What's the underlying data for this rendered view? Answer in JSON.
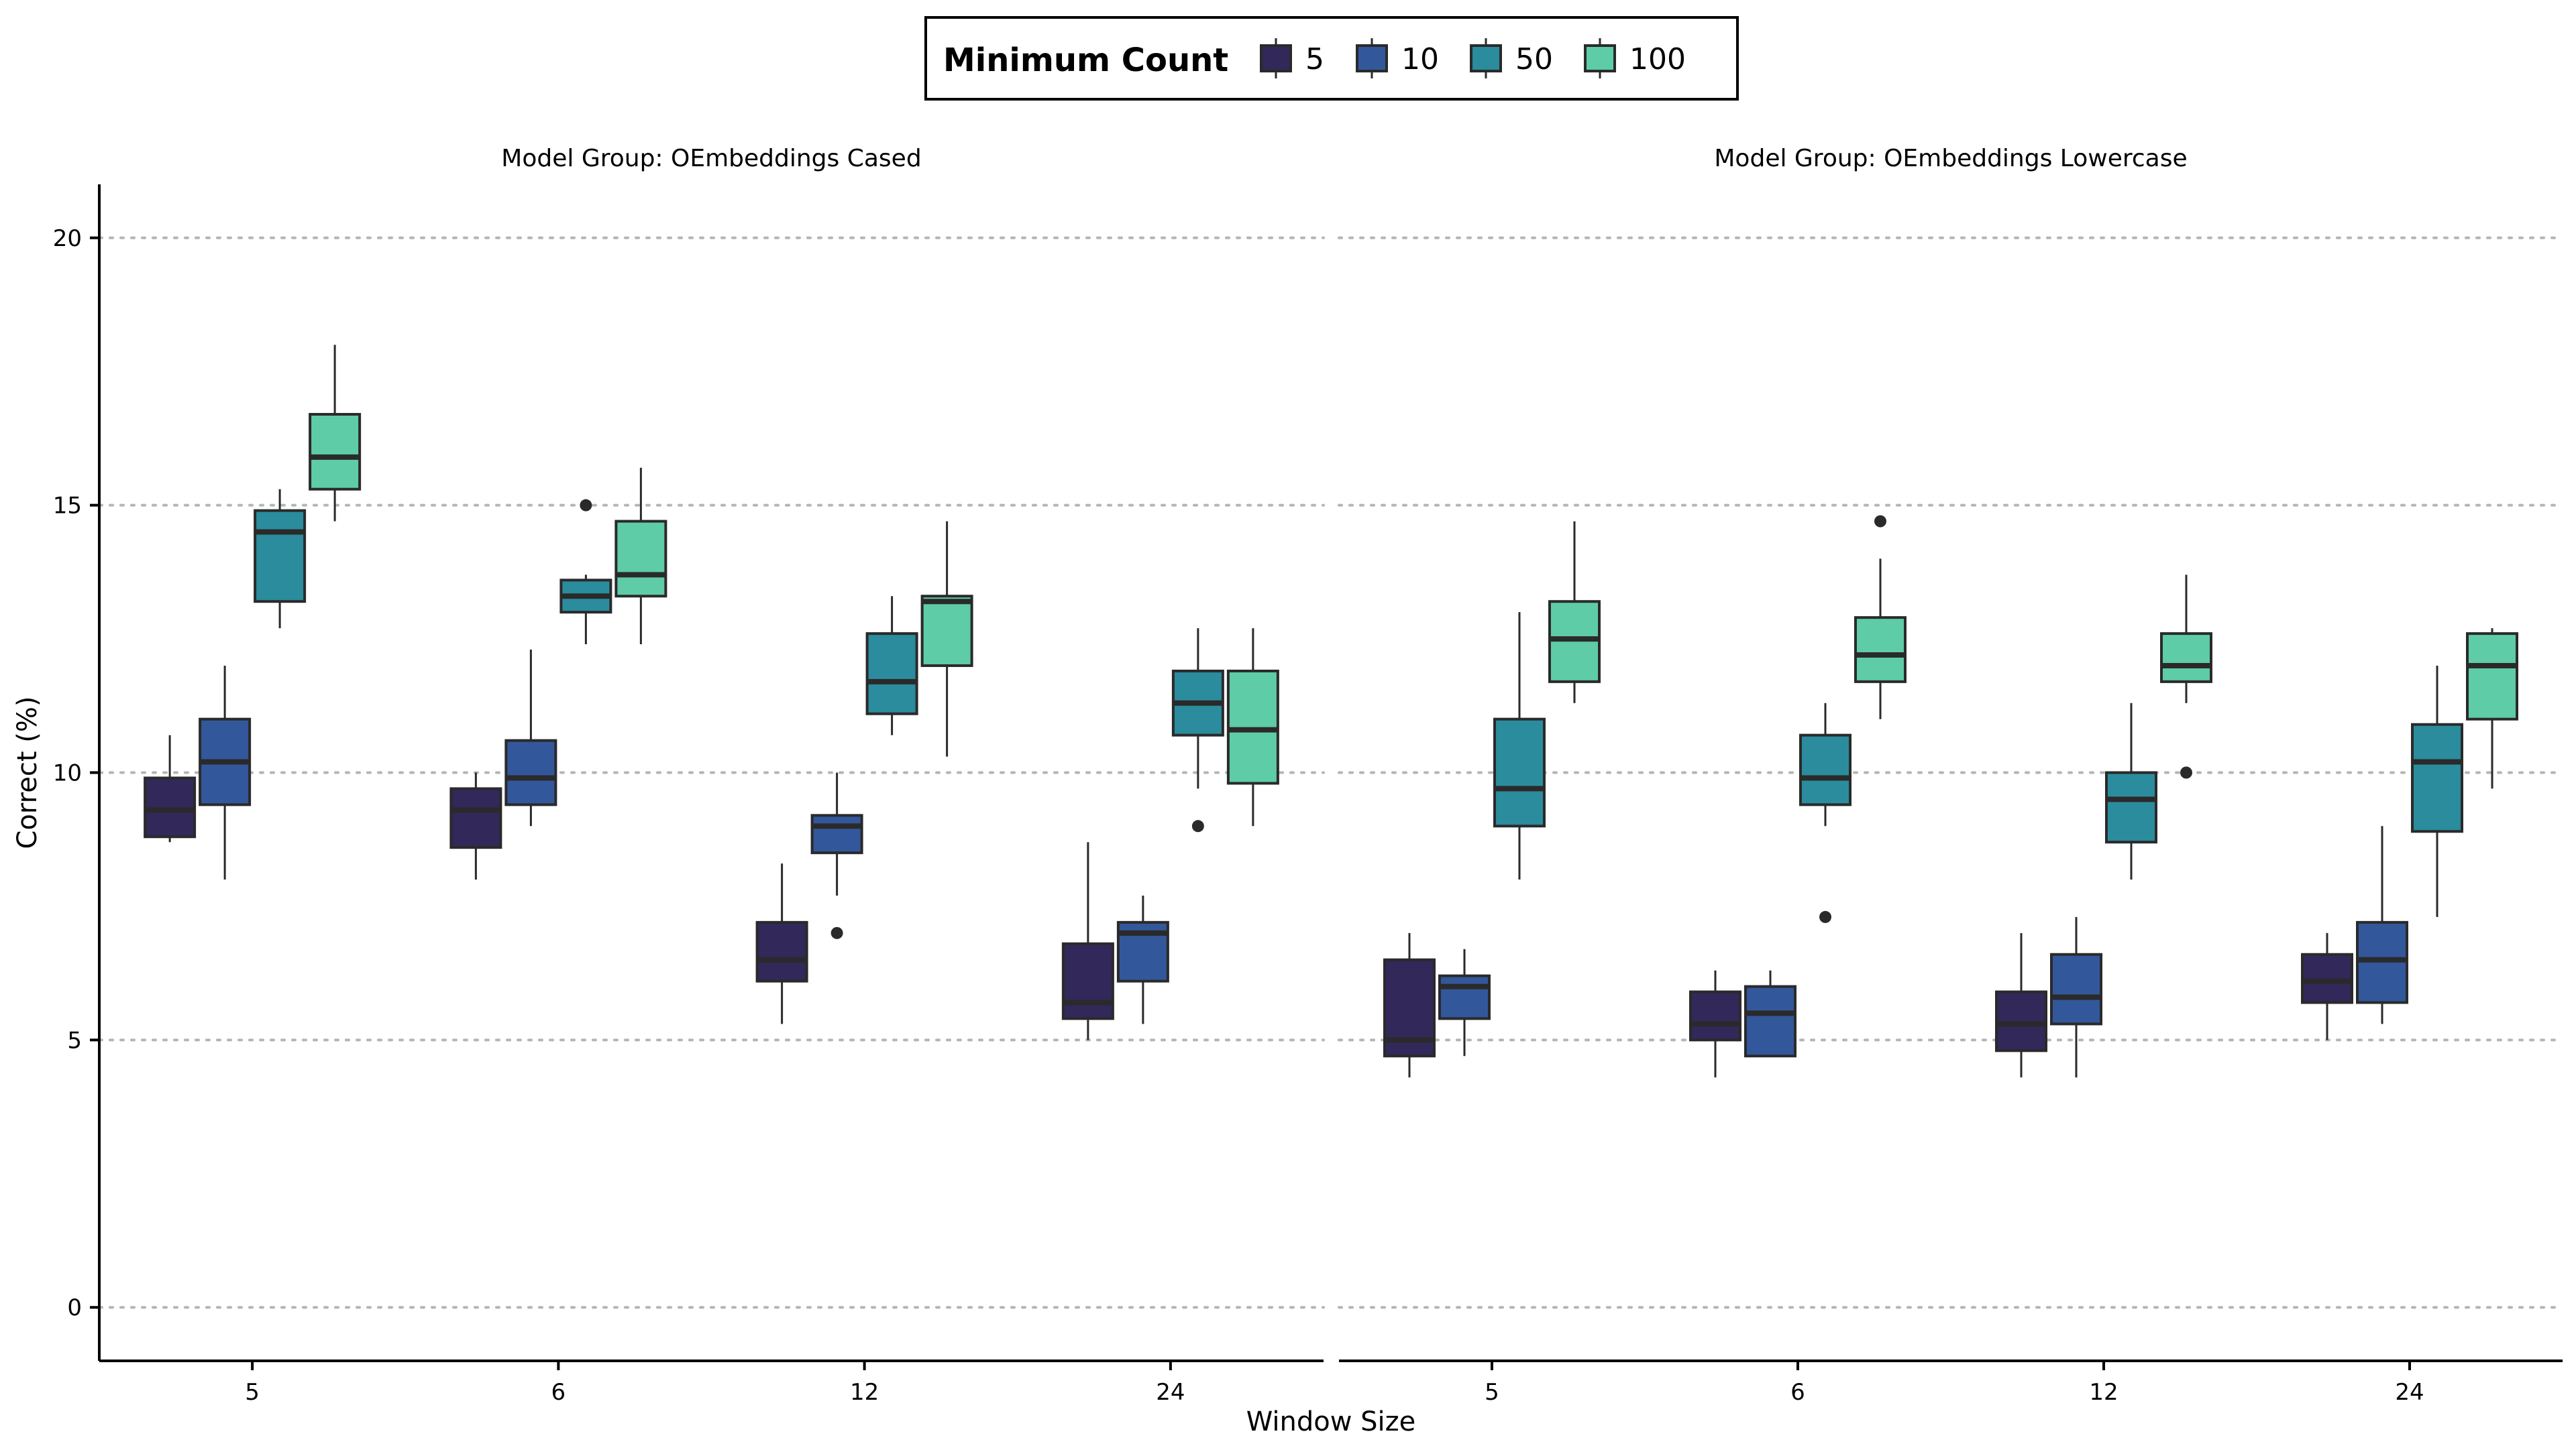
{
  "chart_data": {
    "type": "box",
    "ylabel": "Correct (%)",
    "xlabel": "Window Size",
    "ylim": [
      -1,
      21
    ],
    "yticks": [
      0,
      5,
      10,
      15,
      20
    ],
    "grid": "horizontal-dotted",
    "legend": {
      "title": "Minimum Count",
      "position": "top-center",
      "entries": [
        "5",
        "10",
        "50",
        "100"
      ]
    },
    "colors": {
      "5": "#33285a",
      "10": "#33579b",
      "50": "#2a8c9c",
      "100": "#5ecca6"
    },
    "categories": [
      "5",
      "6",
      "12",
      "24"
    ],
    "facets": [
      {
        "title": "Model Group: OEmbeddings Cased",
        "groups": [
          {
            "window": "5",
            "boxes": [
              {
                "series": "5",
                "min": 8.7,
                "q1": 8.8,
                "median": 9.3,
                "q3": 9.9,
                "max": 10.7,
                "outliers": []
              },
              {
                "series": "10",
                "min": 8.0,
                "q1": 9.4,
                "median": 10.2,
                "q3": 11.0,
                "max": 12.0,
                "outliers": []
              },
              {
                "series": "50",
                "min": 12.7,
                "q1": 13.2,
                "median": 14.5,
                "q3": 14.9,
                "max": 15.3,
                "outliers": []
              },
              {
                "series": "100",
                "min": 14.7,
                "q1": 15.3,
                "median": 15.9,
                "q3": 16.7,
                "max": 18.0,
                "outliers": []
              }
            ]
          },
          {
            "window": "6",
            "boxes": [
              {
                "series": "5",
                "min": 8.0,
                "q1": 8.6,
                "median": 9.3,
                "q3": 9.7,
                "max": 10.0,
                "outliers": []
              },
              {
                "series": "10",
                "min": 9.0,
                "q1": 9.4,
                "median": 9.9,
                "q3": 10.6,
                "max": 12.3,
                "outliers": []
              },
              {
                "series": "50",
                "min": 12.4,
                "q1": 13.0,
                "median": 13.3,
                "q3": 13.6,
                "max": 13.7,
                "outliers": [
                  15.0
                ]
              },
              {
                "series": "100",
                "min": 12.4,
                "q1": 13.3,
                "median": 13.7,
                "q3": 14.7,
                "max": 15.7,
                "outliers": []
              }
            ]
          },
          {
            "window": "12",
            "boxes": [
              {
                "series": "5",
                "min": 5.3,
                "q1": 6.1,
                "median": 6.5,
                "q3": 7.2,
                "max": 8.3,
                "outliers": []
              },
              {
                "series": "10",
                "min": 7.7,
                "q1": 8.5,
                "median": 9.0,
                "q3": 9.2,
                "max": 10.0,
                "outliers": [
                  7.0
                ]
              },
              {
                "series": "50",
                "min": 10.7,
                "q1": 11.1,
                "median": 11.7,
                "q3": 12.6,
                "max": 13.3,
                "outliers": []
              },
              {
                "series": "100",
                "min": 10.3,
                "q1": 12.0,
                "median": 13.2,
                "q3": 13.3,
                "max": 14.7,
                "outliers": []
              }
            ]
          },
          {
            "window": "24",
            "boxes": [
              {
                "series": "5",
                "min": 5.0,
                "q1": 5.4,
                "median": 5.7,
                "q3": 6.8,
                "max": 8.7,
                "outliers": []
              },
              {
                "series": "10",
                "min": 5.3,
                "q1": 6.1,
                "median": 7.0,
                "q3": 7.2,
                "max": 7.7,
                "outliers": []
              },
              {
                "series": "50",
                "min": 9.7,
                "q1": 10.7,
                "median": 11.3,
                "q3": 11.9,
                "max": 12.7,
                "outliers": [
                  9.0
                ]
              },
              {
                "series": "100",
                "min": 9.0,
                "q1": 9.8,
                "median": 10.8,
                "q3": 11.9,
                "max": 12.7,
                "outliers": []
              }
            ]
          }
        ]
      },
      {
        "title": "Model Group: OEmbeddings Lowercase",
        "groups": [
          {
            "window": "5",
            "boxes": [
              {
                "series": "5",
                "min": 4.3,
                "q1": 4.7,
                "median": 5.0,
                "q3": 6.5,
                "max": 7.0,
                "outliers": []
              },
              {
                "series": "10",
                "min": 4.7,
                "q1": 5.4,
                "median": 6.0,
                "q3": 6.2,
                "max": 6.7,
                "outliers": []
              },
              {
                "series": "50",
                "min": 8.0,
                "q1": 9.0,
                "median": 9.7,
                "q3": 11.0,
                "max": 13.0,
                "outliers": []
              },
              {
                "series": "100",
                "min": 11.3,
                "q1": 11.7,
                "median": 12.5,
                "q3": 13.2,
                "max": 14.7,
                "outliers": []
              }
            ]
          },
          {
            "window": "6",
            "boxes": [
              {
                "series": "5",
                "min": 4.3,
                "q1": 5.0,
                "median": 5.3,
                "q3": 5.9,
                "max": 6.3,
                "outliers": []
              },
              {
                "series": "10",
                "min": 4.7,
                "q1": 4.7,
                "median": 5.5,
                "q3": 6.0,
                "max": 6.3,
                "outliers": []
              },
              {
                "series": "50",
                "min": 9.0,
                "q1": 9.4,
                "median": 9.9,
                "q3": 10.7,
                "max": 11.3,
                "outliers": [
                  7.3
                ]
              },
              {
                "series": "100",
                "min": 11.0,
                "q1": 11.7,
                "median": 12.2,
                "q3": 12.9,
                "max": 14.0,
                "outliers": [
                  14.7
                ]
              }
            ]
          },
          {
            "window": "12",
            "boxes": [
              {
                "series": "5",
                "min": 4.3,
                "q1": 4.8,
                "median": 5.3,
                "q3": 5.9,
                "max": 7.0,
                "outliers": []
              },
              {
                "series": "10",
                "min": 4.3,
                "q1": 5.3,
                "median": 5.8,
                "q3": 6.6,
                "max": 7.3,
                "outliers": []
              },
              {
                "series": "50",
                "min": 8.0,
                "q1": 8.7,
                "median": 9.5,
                "q3": 10.0,
                "max": 11.3,
                "outliers": []
              },
              {
                "series": "100",
                "min": 11.3,
                "q1": 11.7,
                "median": 12.0,
                "q3": 12.6,
                "max": 13.7,
                "outliers": [
                  10.0
                ]
              }
            ]
          },
          {
            "window": "24",
            "boxes": [
              {
                "series": "5",
                "min": 5.0,
                "q1": 5.7,
                "median": 6.1,
                "q3": 6.6,
                "max": 7.0,
                "outliers": []
              },
              {
                "series": "10",
                "min": 5.3,
                "q1": 5.7,
                "median": 6.5,
                "q3": 7.2,
                "max": 9.0,
                "outliers": []
              },
              {
                "series": "50",
                "min": 7.3,
                "q1": 8.9,
                "median": 10.2,
                "q3": 10.9,
                "max": 12.0,
                "outliers": []
              },
              {
                "series": "100",
                "min": 9.7,
                "q1": 11.0,
                "median": 12.0,
                "q3": 12.6,
                "max": 12.7,
                "outliers": []
              }
            ]
          }
        ]
      }
    ]
  }
}
